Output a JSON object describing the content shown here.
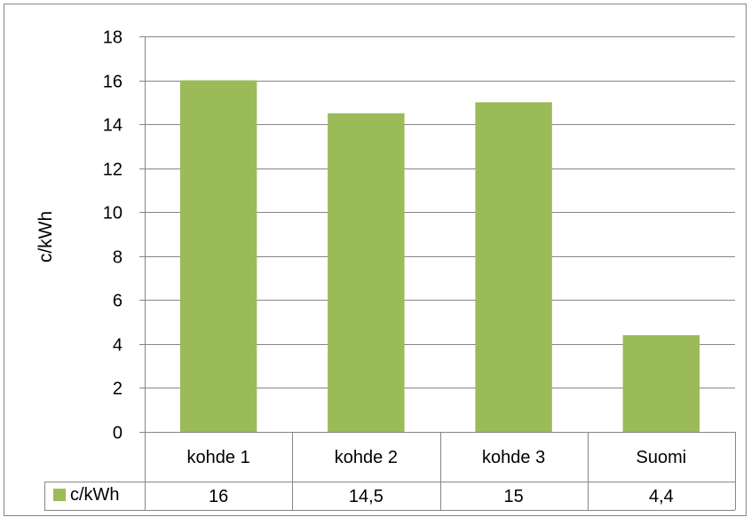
{
  "chart_data": {
    "type": "bar",
    "categories": [
      "kohde 1",
      "kohde 2",
      "kohde 3",
      "Suomi"
    ],
    "series": [
      {
        "name": "c/kWh",
        "values": [
          16,
          14.5,
          15,
          4.4
        ],
        "labels": [
          "16",
          "14,5",
          "15",
          "4,4"
        ]
      }
    ],
    "ylabel": "c/kWh",
    "ylim": [
      0,
      18
    ],
    "yticks": [
      0,
      2,
      4,
      6,
      8,
      10,
      12,
      14,
      16,
      18
    ],
    "grid": true,
    "legend": "data-table",
    "data_table": true
  },
  "colors": {
    "bar": "#9bbb59",
    "grid": "#868686",
    "border": "#868686",
    "text": "#000000"
  }
}
